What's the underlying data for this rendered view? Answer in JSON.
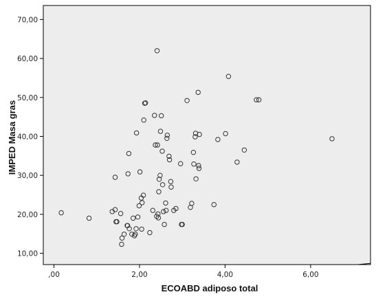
{
  "chart_data": {
    "type": "scatter",
    "title": "",
    "xlabel": "ECOABD adiposo total",
    "ylabel": "IMPED Masa gras",
    "xlim": [
      -0.25,
      7.4
    ],
    "ylim": [
      7.1,
      73.6
    ],
    "x_ticks": [
      0,
      2,
      4,
      6
    ],
    "x_tick_labels": [
      ",00",
      "2,00",
      "4,00",
      "6,00"
    ],
    "y_ticks": [
      10,
      20,
      30,
      40,
      50,
      60,
      70
    ],
    "y_tick_labels": [
      "10,00",
      "20,00",
      "30,00",
      "40,00",
      "50,00",
      "60,00",
      "70,00"
    ],
    "grid": false,
    "reference_line": "y = x",
    "plot_background": "#ededed",
    "point_color": "#333333",
    "points": [
      [
        0.17,
        20.4
      ],
      [
        0.82,
        19.0
      ],
      [
        1.36,
        20.7
      ],
      [
        1.43,
        21.2
      ],
      [
        1.43,
        29.5
      ],
      [
        1.45,
        18.1
      ],
      [
        1.47,
        18.1
      ],
      [
        1.56,
        20.2
      ],
      [
        1.58,
        12.3
      ],
      [
        1.59,
        13.9
      ],
      [
        1.64,
        14.9
      ],
      [
        1.71,
        17.1
      ],
      [
        1.72,
        17.1
      ],
      [
        1.73,
        30.4
      ],
      [
        1.75,
        35.6
      ],
      [
        1.76,
        16.3
      ],
      [
        1.82,
        14.9
      ],
      [
        1.85,
        19.0
      ],
      [
        1.88,
        14.5
      ],
      [
        1.9,
        14.9
      ],
      [
        1.92,
        16.3
      ],
      [
        1.93,
        40.9
      ],
      [
        1.96,
        19.3
      ],
      [
        1.99,
        22.2
      ],
      [
        2.01,
        30.9
      ],
      [
        2.04,
        24.2
      ],
      [
        2.05,
        16.2
      ],
      [
        2.06,
        23.0
      ],
      [
        2.09,
        24.9
      ],
      [
        2.1,
        44.2
      ],
      [
        2.12,
        48.5
      ],
      [
        2.14,
        48.6
      ],
      [
        2.24,
        15.3
      ],
      [
        2.31,
        21.0
      ],
      [
        2.35,
        45.4
      ],
      [
        2.37,
        37.8
      ],
      [
        2.4,
        19.5
      ],
      [
        2.41,
        62.0
      ],
      [
        2.42,
        37.8
      ],
      [
        2.43,
        20.1
      ],
      [
        2.44,
        19.1
      ],
      [
        2.45,
        25.8
      ],
      [
        2.46,
        29.0
      ],
      [
        2.48,
        30.0
      ],
      [
        2.49,
        41.3
      ],
      [
        2.51,
        45.3
      ],
      [
        2.53,
        36.2
      ],
      [
        2.54,
        27.6
      ],
      [
        2.56,
        20.7
      ],
      [
        2.58,
        17.4
      ],
      [
        2.61,
        22.9
      ],
      [
        2.62,
        21.0
      ],
      [
        2.64,
        39.5
      ],
      [
        2.65,
        40.3
      ],
      [
        2.69,
        34.9
      ],
      [
        2.7,
        34.0
      ],
      [
        2.73,
        28.4
      ],
      [
        2.74,
        27.0
      ],
      [
        2.8,
        21.0
      ],
      [
        2.85,
        21.5
      ],
      [
        2.96,
        33.0
      ],
      [
        2.98,
        17.4
      ],
      [
        3.0,
        17.4
      ],
      [
        3.11,
        49.2
      ],
      [
        3.19,
        21.8
      ],
      [
        3.22,
        22.8
      ],
      [
        3.26,
        35.9
      ],
      [
        3.27,
        32.9
      ],
      [
        3.3,
        39.9
      ],
      [
        3.31,
        40.8
      ],
      [
        3.32,
        29.1
      ],
      [
        3.37,
        51.3
      ],
      [
        3.38,
        32.5
      ],
      [
        3.39,
        31.8
      ],
      [
        3.4,
        40.5
      ],
      [
        3.74,
        22.5
      ],
      [
        3.83,
        39.2
      ],
      [
        4.01,
        40.7
      ],
      [
        4.08,
        55.4
      ],
      [
        4.28,
        33.4
      ],
      [
        4.45,
        36.5
      ],
      [
        4.73,
        49.4
      ],
      [
        4.79,
        49.4
      ],
      [
        6.5,
        39.4
      ]
    ]
  }
}
